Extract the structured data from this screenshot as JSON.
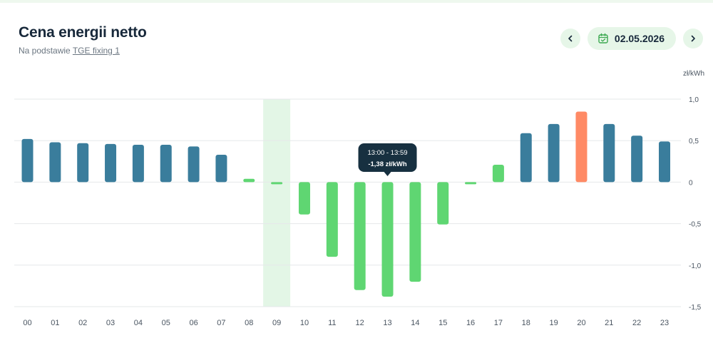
{
  "header": {
    "title": "Cena energii netto",
    "subtitle_prefix": "Na podstawie",
    "subtitle_link": "TGE fixing 1"
  },
  "date_nav": {
    "prev_icon": "chevron-left-icon",
    "calendar_icon": "calendar-check-icon",
    "date": "02.05.2026",
    "next_icon": "chevron-right-icon"
  },
  "tooltip": {
    "range": "13:00 - 13:59",
    "value": "-1,38 zł/kWh"
  },
  "chart_data": {
    "type": "bar",
    "unit_label": "zł/kWh",
    "categories": [
      "00",
      "01",
      "02",
      "03",
      "04",
      "05",
      "06",
      "07",
      "08",
      "09",
      "10",
      "11",
      "12",
      "13",
      "14",
      "15",
      "16",
      "17",
      "18",
      "19",
      "20",
      "21",
      "22",
      "23"
    ],
    "values": [
      0.52,
      0.48,
      0.47,
      0.46,
      0.45,
      0.45,
      0.43,
      0.33,
      0.04,
      -0.02,
      -0.39,
      -0.9,
      -1.3,
      -1.38,
      -1.2,
      -0.51,
      -0.02,
      0.21,
      0.59,
      0.7,
      0.85,
      0.7,
      0.56,
      0.49
    ],
    "ylim": [
      -1.5,
      1.0
    ],
    "yticks": [
      1.0,
      0.5,
      0,
      -0.5,
      -1.0,
      -1.5
    ],
    "ytick_labels": [
      "1,0",
      "0,5",
      "0",
      "-0,5",
      "-1,0",
      "-1,5"
    ],
    "highlighted_category": "09",
    "tooltip_category": "13",
    "max_category": "20",
    "colors": {
      "positive": "#3a7d9c",
      "negative": "#5fd672",
      "low_positive": "#5fd672",
      "maximum": "#ff8a65",
      "highlight_band": "#e3f6e6",
      "grid": "#e6e8ea",
      "tooltip_bg": "#173040"
    },
    "grid": true,
    "legend": "none"
  }
}
